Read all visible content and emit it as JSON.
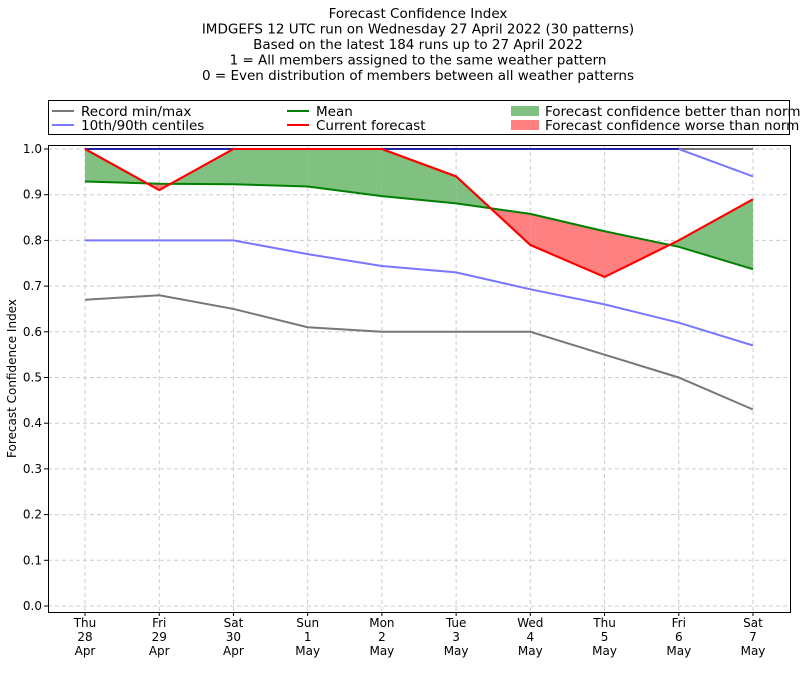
{
  "chart_data": {
    "type": "line",
    "title_lines": [
      "Forecast Confidence Index",
      "IMDGEFS 12 UTC run on Wednesday 27 April 2022 (30 patterns)",
      "Based on the latest 184 runs up to 27 April 2022",
      "1 = All members assigned to the same weather pattern",
      "0 = Even distribution of members between all weather patterns"
    ],
    "ylabel": "Forecast Confidence Index",
    "xlabel": "",
    "ylim": [
      0,
      1
    ],
    "yticks": [
      "0.0",
      "0.1",
      "0.2",
      "0.3",
      "0.4",
      "0.5",
      "0.6",
      "0.7",
      "0.8",
      "0.9",
      "1.0"
    ],
    "categories": [
      [
        "Thu",
        "28",
        "Apr"
      ],
      [
        "Fri",
        "29",
        "Apr"
      ],
      [
        "Sat",
        "30",
        "Apr"
      ],
      [
        "Sun",
        "1",
        "May"
      ],
      [
        "Mon",
        "2",
        "May"
      ],
      [
        "Tue",
        "3",
        "May"
      ],
      [
        "Wed",
        "4",
        "May"
      ],
      [
        "Thu",
        "5",
        "May"
      ],
      [
        "Fri",
        "6",
        "May"
      ],
      [
        "Sat",
        "7",
        "May"
      ]
    ],
    "grid": true,
    "legend_placement": "top, above plot",
    "series": [
      {
        "name": "Record min/max",
        "color": "#777777",
        "role": "max",
        "values": [
          1,
          1,
          1,
          1,
          1,
          1,
          1,
          1,
          1,
          1
        ]
      },
      {
        "name": "Record min/max",
        "color": "#777777",
        "role": "min",
        "values": [
          0.67,
          0.68,
          0.65,
          0.61,
          0.6,
          0.6,
          0.6,
          0.55,
          0.5,
          0.43
        ]
      },
      {
        "name": "10th/90th centiles",
        "color": "#7777ff",
        "role": "p90",
        "values": [
          1,
          1,
          1,
          1,
          1,
          1,
          1,
          1,
          1,
          0.94
        ]
      },
      {
        "name": "10th/90th centiles",
        "color": "#7777ff",
        "role": "p10",
        "values": [
          0.8,
          0.8,
          0.8,
          0.77,
          0.744,
          0.73,
          0.693,
          0.66,
          0.62,
          0.57
        ]
      },
      {
        "name": "Mean",
        "color": "#008000",
        "role": "mean",
        "values": [
          0.929,
          0.924,
          0.923,
          0.918,
          0.897,
          0.881,
          0.858,
          0.82,
          0.786,
          0.737
        ]
      },
      {
        "name": "Current forecast",
        "color": "#ff0000",
        "role": "current",
        "values": [
          1.0,
          0.91,
          1.0,
          1.0,
          1.0,
          0.94,
          0.79,
          0.72,
          0.8,
          0.89
        ]
      }
    ],
    "legend": [
      {
        "label": "Record min/max",
        "kind": "line",
        "color": "#777777"
      },
      {
        "label": "10th/90th centiles",
        "kind": "line",
        "color": "#7777ff"
      },
      {
        "label": "Mean",
        "kind": "line",
        "color": "#008000"
      },
      {
        "label": "Current forecast",
        "kind": "line",
        "color": "#ff0000"
      },
      {
        "label": "Forecast confidence better than normal",
        "kind": "patch",
        "color": "#80c080"
      },
      {
        "label": "Forecast confidence worse than normal",
        "kind": "patch",
        "color": "#ff8080"
      }
    ],
    "fill_better_color": "#80c080",
    "fill_worse_color": "#ff8080",
    "overlap_color": "#2222aa"
  }
}
